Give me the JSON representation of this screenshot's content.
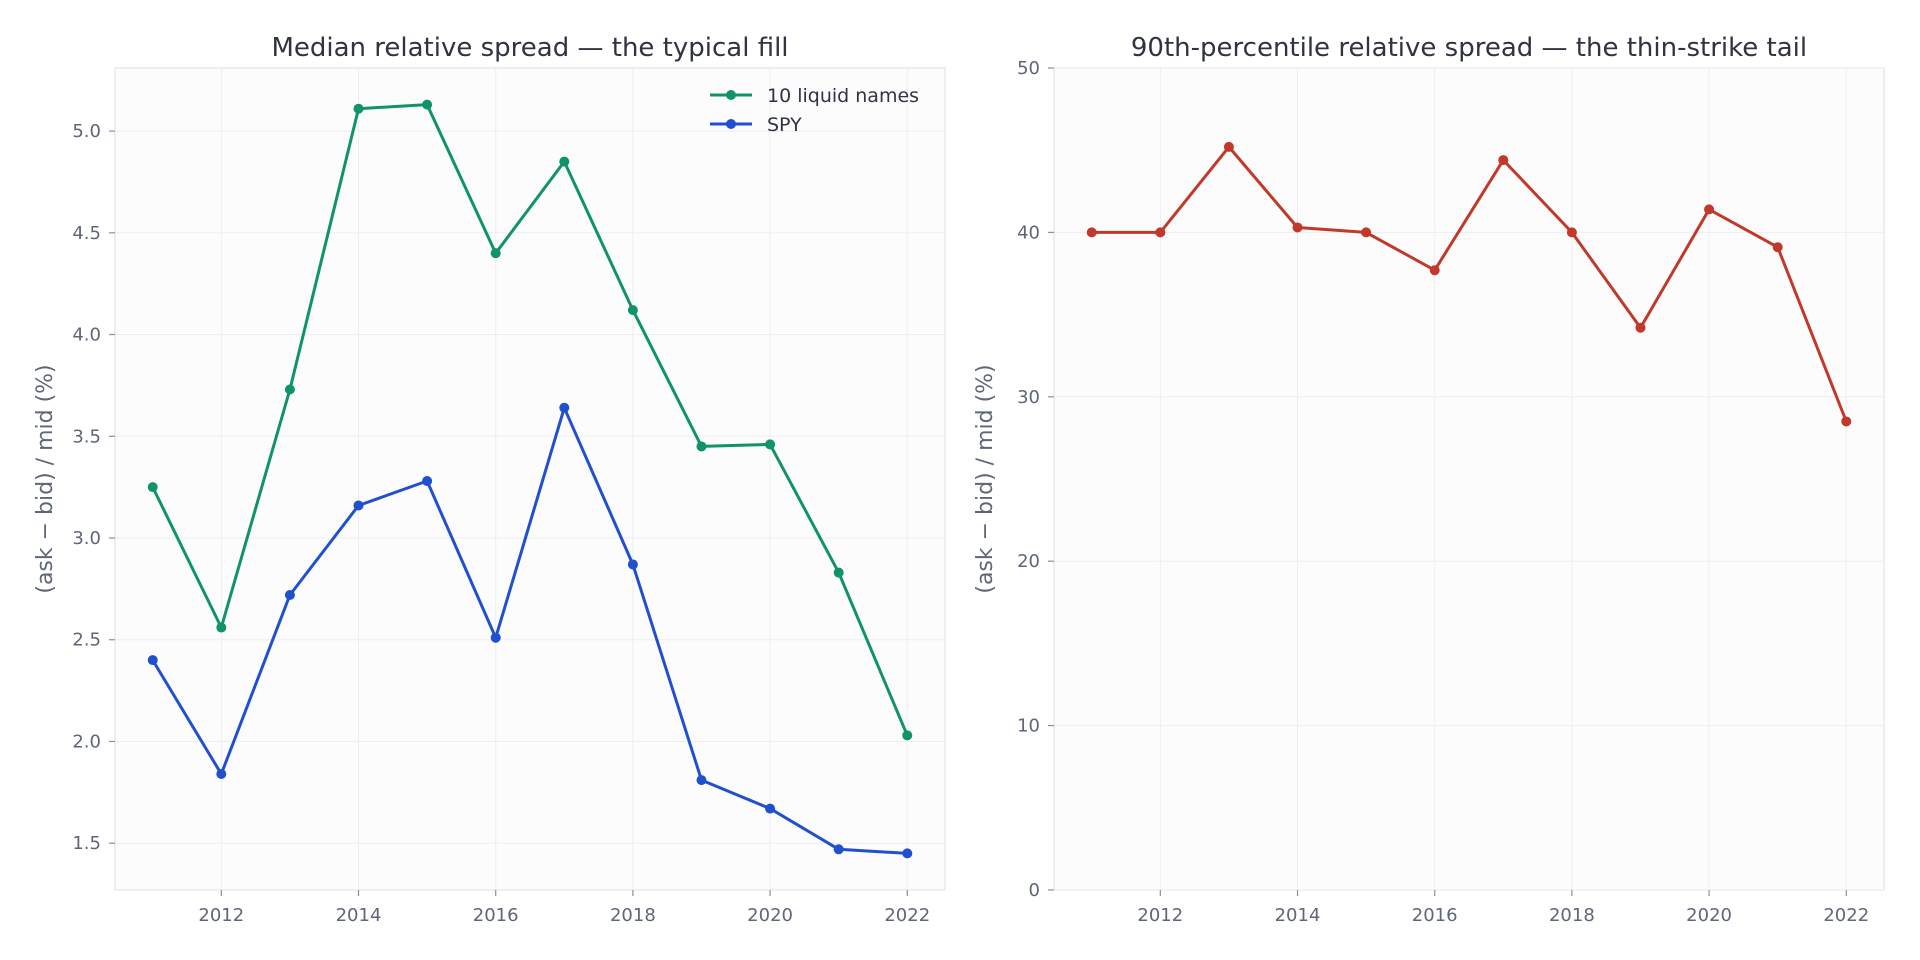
{
  "chart_data": [
    {
      "type": "line",
      "title": "Median relative spread — the typical fill",
      "xlabel": "",
      "ylabel": "(ask − bid) / mid (%)",
      "x": [
        2011,
        2012,
        2013,
        2014,
        2015,
        2016,
        2017,
        2018,
        2019,
        2020,
        2021,
        2022
      ],
      "xlim": [
        2010.45,
        2022.55
      ],
      "ylim": [
        1.27,
        5.31
      ],
      "xticks": [
        2012,
        2014,
        2016,
        2018,
        2020,
        2022
      ],
      "yticks": [
        1.5,
        2.0,
        2.5,
        3.0,
        3.5,
        4.0,
        4.5,
        5.0
      ],
      "ytick_labels": [
        "1.5",
        "2.0",
        "2.5",
        "3.0",
        "3.5",
        "4.0",
        "4.5",
        "5.0"
      ],
      "grid": true,
      "legend_position": "top-right",
      "series": [
        {
          "name": "10 liquid names",
          "color": "#11936a",
          "values": [
            3.25,
            2.56,
            3.73,
            5.11,
            5.13,
            4.4,
            4.85,
            4.12,
            3.45,
            3.46,
            2.83,
            2.03
          ]
        },
        {
          "name": "SPY",
          "color": "#2150cf",
          "values": [
            2.4,
            1.84,
            2.72,
            3.16,
            3.28,
            2.51,
            3.64,
            2.87,
            1.81,
            1.67,
            1.47,
            1.45
          ]
        }
      ]
    },
    {
      "type": "line",
      "title": "90th-percentile relative spread — the thin-strike tail",
      "xlabel": "",
      "ylabel": "(ask − bid) / mid (%)",
      "x": [
        2011,
        2012,
        2013,
        2014,
        2015,
        2016,
        2017,
        2018,
        2019,
        2020,
        2021,
        2022
      ],
      "xlim": [
        2010.45,
        2022.55
      ],
      "ylim": [
        0,
        50
      ],
      "xticks": [
        2012,
        2014,
        2016,
        2018,
        2020,
        2022
      ],
      "yticks": [
        0,
        10,
        20,
        30,
        40,
        50
      ],
      "ytick_labels": [
        "0",
        "10",
        "20",
        "30",
        "40",
        "50"
      ],
      "grid": true,
      "series": [
        {
          "color": "#c0392b",
          "values": [
            40.0,
            40.0,
            45.2,
            40.3,
            40.0,
            37.7,
            44.4,
            40.0,
            34.2,
            41.4,
            39.1,
            28.5
          ]
        }
      ]
    }
  ]
}
